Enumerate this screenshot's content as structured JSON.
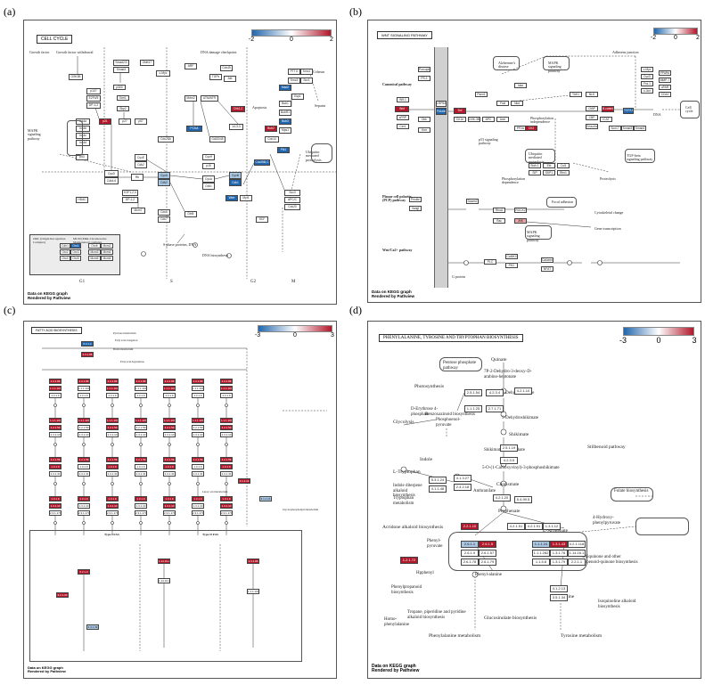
{
  "figure": {
    "panel_labels": [
      "(a)",
      "(b)",
      "(c)",
      "(d)"
    ]
  },
  "footer": {
    "line1": "Data on KEGG graph",
    "line2": "Rendered by Pathview"
  },
  "colors": {
    "up": "#b2182b",
    "down": "#2166ac",
    "mid": "#ffffff",
    "up_light": "#e6a7a7",
    "down_light": "#a9c6e3"
  },
  "panel_a": {
    "title": "CELL CYCLE",
    "legend": {
      "min": "-2",
      "mid": "0",
      "max": "2"
    },
    "phases": [
      "G1",
      "S",
      "G2",
      "M"
    ],
    "labels": {
      "growth_factor": "Growth factor",
      "growth_factor_withdrawal": "Growth factor withdrawal",
      "dna_damage": "DNA damage checkpoint",
      "mapk": "MAPK signaling pathway",
      "apoptosis": "Apoptosis",
      "cohesin": "Cohesin",
      "separin": "Separin",
      "ubiquitin": "Ubiquitin mediated proteolysis",
      "dna_biosynthesis": "DNA biosynthesis",
      "s_phase": "S-phase proteins, DNA",
      "orc": "ORC (Origin Recognition Complex)",
      "mcm": "MCM (Mini-Chromosome Maintenance) complex"
    },
    "nodes": [
      "GSK3B",
      "Smad2/3",
      "Smad4",
      "p107",
      "E2F4/5",
      "DP-1,2",
      "p300",
      "Skp2",
      "p21",
      "p27",
      "p57",
      "Ink4a",
      "Ink4b",
      "Ink4c",
      "Ink4d",
      "CycD",
      "Cdk4,6",
      "Rb",
      "E2F1,2,3",
      "DP-1,2",
      "CycE",
      "Cdk2",
      "CycA",
      "Cdk2",
      "CycA",
      "Cdk1",
      "CycB",
      "Cdk1",
      "PCNA",
      "GADD45",
      "14-3-3",
      "Chk1,2",
      "ATM/ATR",
      "Mdm2",
      "ARF",
      "Wee",
      "Myt1",
      "Cdc25A",
      "Cdc25B,C",
      "Cdc14",
      "Plk1",
      "Bub2",
      "Mad2",
      "Bub1",
      "BubR1",
      "Bub3",
      "Mps1",
      "Esp1",
      "PTTG",
      "Smc1",
      "Smc3",
      "Scc1",
      "Scc3",
      "APC/C",
      "Cdc20",
      "Cdh1",
      "Orc1",
      "Orc2",
      "Orc3",
      "Orc4",
      "Orc5",
      "Orc6",
      "Mcm2",
      "Mcm3",
      "Mcm4",
      "Mcm5",
      "Mcm6",
      "Mcm7",
      "Cdc6",
      "Cdc7",
      "Dbf4",
      "Cdc45",
      "Abl",
      "HDAC",
      "SCF",
      "Emi1",
      "c-Myc",
      "Zbtb17",
      "TGFb",
      "p53",
      "p15",
      "CycH",
      "Cdk7"
    ]
  },
  "panel_b": {
    "title": "WNT SIGNALING PATHWAY",
    "legend": {
      "min": "-2",
      "mid": "0",
      "max": "2"
    },
    "labels": {
      "canonical": "Canonical pathway",
      "pcp": "Planar cell polarity (PCP) pathway",
      "ca": "Wnt/Ca2+ pathway",
      "alzheimer": "Alzheimer's disease",
      "mapk1": "MAPK signaling pathway",
      "mapk2": "MAPK signaling pathway",
      "adherens": "Adherens junction",
      "focal": "Focal adhesion",
      "cytoskeletal": "Cytoskeletal change",
      "gene": "Gene transcription",
      "ubiquitin": "Ubiquitin mediated proteolysis",
      "proteolysis": "Proteolysis",
      "tgf": "TGF-beta signaling pathway",
      "dna": "DNA",
      "cell_cycle": "Cell cycle",
      "phos1": "Phosphorylation independence",
      "phos2": "Phosphorylation dependence",
      "p53": "p53 signaling pathway",
      "gprotein": "G protein"
    },
    "nodes": [
      "Wnt",
      "Frizzled",
      "LRP5/6",
      "Dvl",
      "CK1e",
      "GSK-3B",
      "APC",
      "Axin",
      "B-catenin",
      "TCF/LEF",
      "c-Myc",
      "CycD",
      "Fra-1",
      "c-Jun",
      "PPARd",
      "MMP-7",
      "uPAR",
      "CD44",
      "Daam1",
      "RhoA",
      "ROCK2",
      "Rac",
      "JNK",
      "PLC",
      "CaMKII",
      "PKC",
      "Calcineurin",
      "NFAT",
      "Siah-1",
      "SIP",
      "Ebi",
      "SKP1",
      "Cul1",
      "Rbx1",
      "TAK1",
      "NLK",
      "CtBP",
      "CBP",
      "Groucho",
      "PS-1",
      "Sox17",
      "Smad3",
      "Smad4",
      "Wif-1",
      "sFRP",
      "Cer1",
      "Dkk",
      "Krm",
      "Nkd",
      "Porcupine",
      "Idax",
      "Frat",
      "PP2A",
      "CK2",
      "ICAT",
      "Prickle",
      "Vangl",
      "Psen1"
    ]
  },
  "panel_c": {
    "title": "FATTY ACID BIOSYNTHESIS",
    "legend": {
      "min": "-3",
      "mid": "0",
      "max": "3"
    },
    "sub_labels": {
      "type1": "Type I FAS",
      "type2": "Type II FAS",
      "pyruvate": "Pyruvate metabolism",
      "fatty_elong": "Fatty acid elongation",
      "fatty_deg": "Fatty acid degradation",
      "biotin": "Biotin metabolism",
      "lipoic": "Lipoic acid metabolism",
      "glycerophospholipid": "Glycerophospholipid metabolism"
    },
    "nodes": [
      "6.4.1.2",
      "2.3.1.85",
      "2.3.1.86",
      "1.1.1.100",
      "4.2.1.59",
      "1.3.1.9",
      "1.3.1.10",
      "2.3.1.41",
      "2.3.1.179",
      "3.1.2.14",
      "3.1.2.21",
      "6.2.1.3",
      "6.2.1.20",
      "2.3.1.39",
      "1.14.19.2",
      "1.14.19.3"
    ]
  },
  "panel_d": {
    "title": "PHENYLALANINE, TYROSINE AND TRYPTOPHAN BIOSYNTHESIS",
    "legend": {
      "min": "-3",
      "mid": "0",
      "max": "3"
    },
    "compounds": {
      "quinate": "Quinate",
      "pentose": "Pentose phosphate pathway",
      "photo": "Photosynthesis",
      "glycolysis": "Glycolysis",
      "d_ery": "D-Erythrose 4-phosphate",
      "pep": "Phosphoenol-pyruvate",
      "dahp": "7P-2-Dehydro-3-deoxy-D-arabino-heptonate",
      "dehydroquinate": "3-Dehydroquinate",
      "dehydroshikimate": "3-Dehydroshikimate",
      "shikimate": "Shikimate",
      "shikimate3p": "Shikimate 3-phosphate",
      "epsp": "5-O-(1-Carboxyvinyl)-3-phosphoshikimate",
      "chorismate": "Chorismate",
      "prephenate": "Prephenate",
      "anthranilate": "Anthranilate",
      "tryptophan": "L-Tryptophan",
      "indole": "Indole",
      "phenylpyruvate": "Phenyl-pyruvate",
      "hydroxyphenylpyruvate": "4-Hydroxy-phenylpyruvate",
      "arogenate": "L-Arogenate",
      "phenylalanine": "Phenyl-alanine",
      "tyrosine": "Tyrosine",
      "folate": "Folate biosynthesis",
      "ubiquinone": "Ubiquinone and other terpenoid-quinone biosynthesis",
      "acridone": "Acridone alkaloid biosynthesis",
      "benzoxazinoid": "Benzoxazinoid biosynthesis",
      "indole_diterp": "Indole diterpene alkaloid biosynthesis",
      "phenylpropanoid": "Phenylpropanoid biosynthesis",
      "tropane": "Tropane, piperidine and pyridine alkaloid biosynthesis",
      "glucosinolate": "Glucosinolate biosynthesis",
      "isoquinoline": "Isoquinoline alkaloid biosynthesis",
      "phenylalanine_met": "Phenylalanine metabolism",
      "tyrosine_met": "Tyrosine metabolism",
      "stilbenoid": "Stilbenoid pathway",
      "tryptophan_met": "Tryptophan metabolism",
      "homo": "Homo-phenylalanine",
      "hppd": "Hpphenyl"
    },
    "enzymes": [
      "2.5.1.54",
      "4.2.3.4",
      "4.2.1.10",
      "1.1.1.25",
      "2.7.1.71",
      "2.5.1.19",
      "4.2.3.5",
      "5.4.99.5",
      "4.1.3.27",
      "2.4.2.18",
      "5.3.1.24",
      "4.1.1.48",
      "4.2.1.20",
      "4.2.1.51",
      "4.2.1.91",
      "1.3.1.12",
      "1.3.1.43",
      "1.3.1.78",
      "1.3.1.79",
      "2.6.1.1",
      "2.6.1.5",
      "2.6.1.9",
      "2.6.1.57",
      "2.6.1.78",
      "2.6.1.79",
      "1.1.1.24",
      "1.1.1.282",
      "1.1.5.8",
      "4.2.1.118",
      "1.14.16.1",
      "2.2.1.10",
      "2.2.1.1",
      "4.1.2.13",
      "3.5.1.34",
      "1.2.1.72"
    ]
  }
}
